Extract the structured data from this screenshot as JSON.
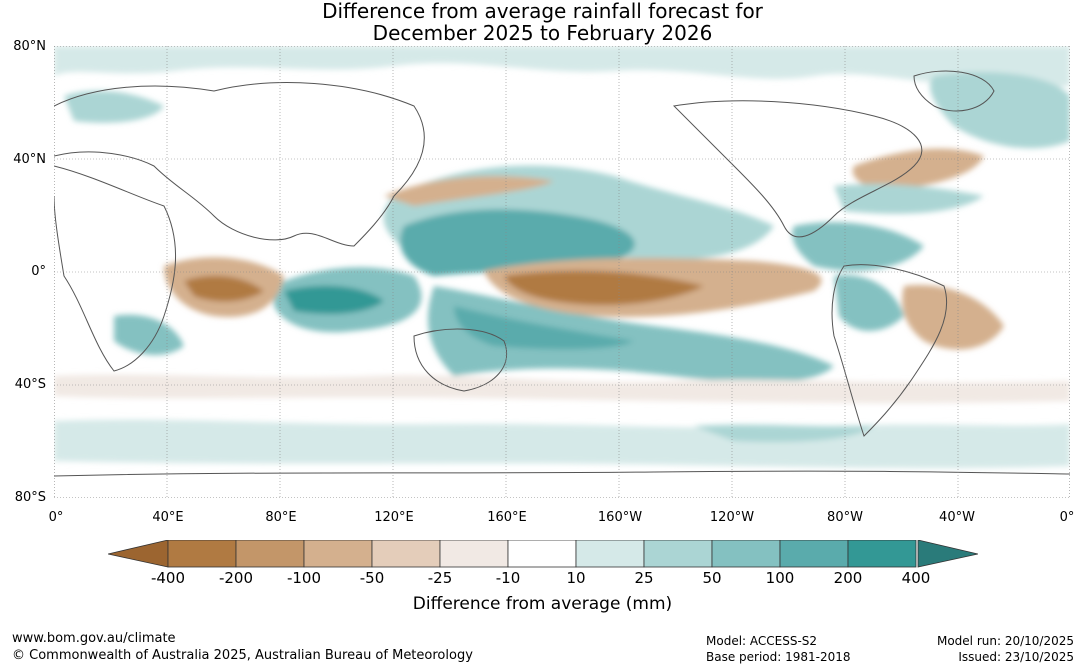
{
  "title": {
    "line1": "Difference from average rainfall forecast for",
    "line2": "December 2025 to February 2026"
  },
  "axes": {
    "lat_labels": [
      "80°N",
      "40°N",
      "0°",
      "40°S",
      "80°S"
    ],
    "lon_labels": [
      "0°",
      "40°E",
      "80°E",
      "120°E",
      "160°E",
      "160°W",
      "120°W",
      "80°W",
      "40°W",
      "0°"
    ]
  },
  "legend": {
    "title": "Difference from average (mm)",
    "ticks": [
      "-400",
      "-200",
      "-100",
      "-50",
      "-25",
      "-10",
      "10",
      "25",
      "50",
      "100",
      "200",
      "400"
    ],
    "colors": [
      "#9c6530",
      "#b07a42",
      "#c39669",
      "#d4b08e",
      "#e4cdba",
      "#f1e9e4",
      "#ffffff",
      "#d5e9e8",
      "#abd5d4",
      "#84c1c1",
      "#5aabac",
      "#339895",
      "#2a7b7a"
    ]
  },
  "footer": {
    "url": "www.bom.gov.au/climate",
    "copyright": "© Commonwealth of Australia 2025, Australian Bureau of Meteorology",
    "model": "Model: ACCESS-S2",
    "base_period": "Base period: 1981-2018",
    "model_run": "Model run: 20/10/2025",
    "issued": "Issued: 23/10/2025"
  }
}
